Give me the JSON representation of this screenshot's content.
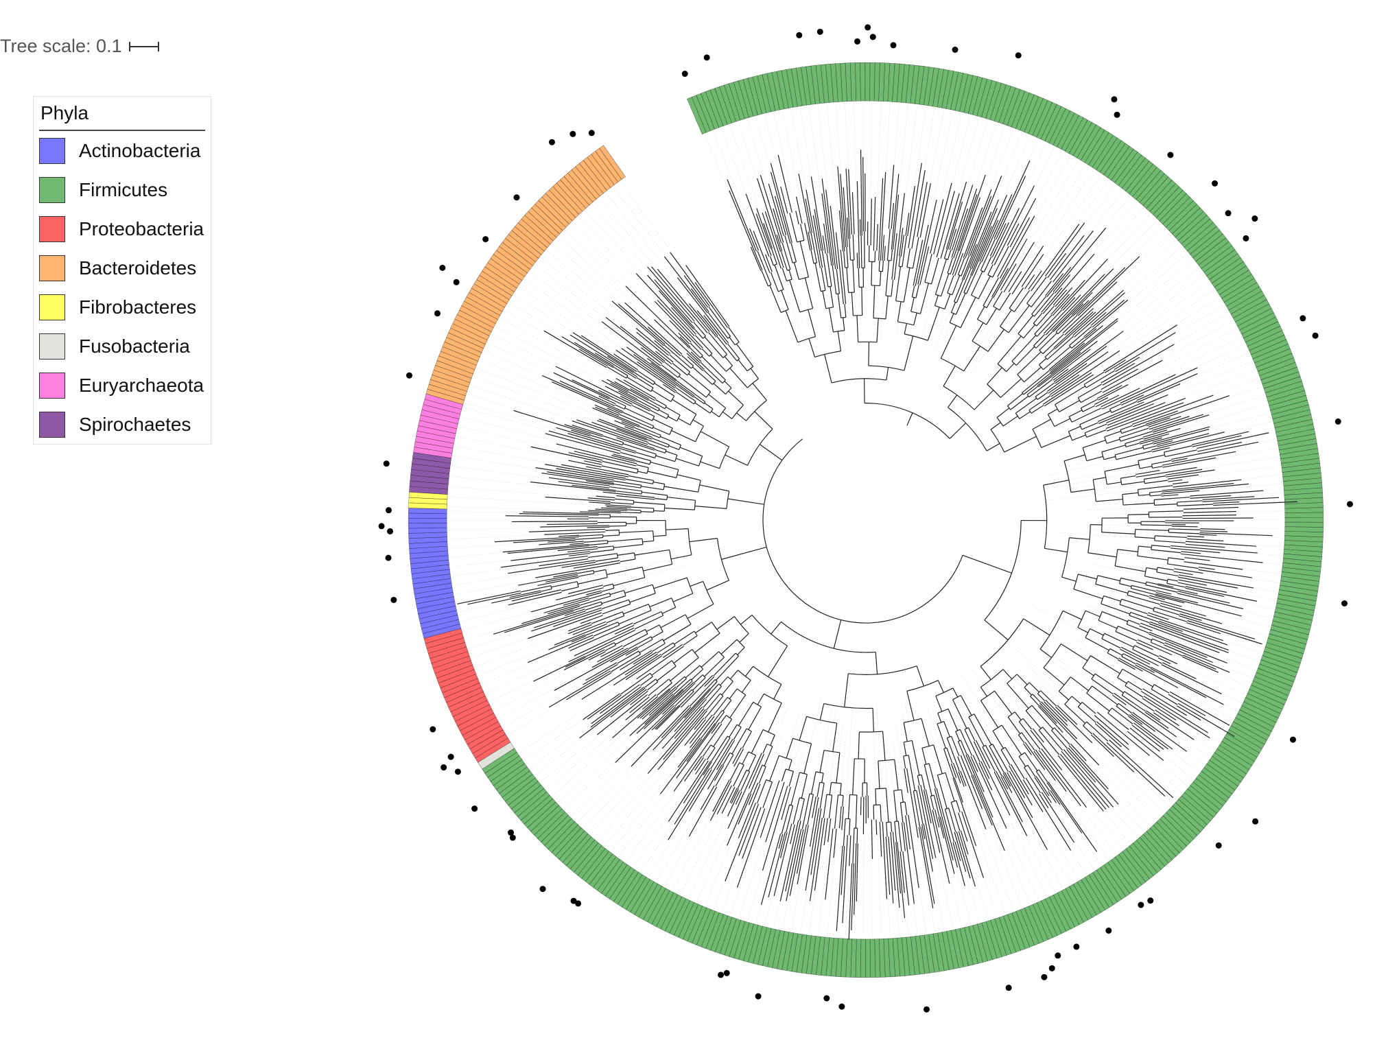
{
  "scale": {
    "label": "Tree scale: 0.1"
  },
  "legend": {
    "title": "Phyla",
    "items": [
      {
        "label": "Actinobacteria",
        "color": "#7777ff"
      },
      {
        "label": "Firmicutes",
        "color": "#6fba70"
      },
      {
        "label": "Proteobacteria",
        "color": "#ff6464"
      },
      {
        "label": "Bacteroidetes",
        "color": "#ffb470"
      },
      {
        "label": "Fibrobacteres",
        "color": "#ffff64"
      },
      {
        "label": "Fusobacteria",
        "color": "#e2e2dc"
      },
      {
        "label": "Euryarchaeota",
        "color": "#ff80e0"
      },
      {
        "label": "Spirochaetes",
        "color": "#8e5aa8"
      }
    ]
  },
  "tree": {
    "ring_segments": [
      {
        "phylum": "Bacteroidetes",
        "from_deg": 196,
        "to_deg": 235,
        "leaves": 62
      },
      {
        "phylum": "Euryarchaeota",
        "from_deg": 188.5,
        "to_deg": 196,
        "leaves": 11
      },
      {
        "phylum": "Spirochaetes",
        "from_deg": 183.5,
        "to_deg": 188.5,
        "leaves": 7
      },
      {
        "phylum": "Fibrobacteres",
        "from_deg": 181.5,
        "to_deg": 183.5,
        "leaves": 3
      },
      {
        "phylum": "Actinobacteria",
        "from_deg": 165,
        "to_deg": 181.5,
        "leaves": 26
      },
      {
        "phylum": "Proteobacteria",
        "from_deg": 148,
        "to_deg": 165,
        "leaves": 26
      },
      {
        "phylum": "Fusobacteria",
        "from_deg": 147,
        "to_deg": 148,
        "leaves": 1
      },
      {
        "phylum": "Firmicutes",
        "from_deg": -113,
        "to_deg": 147,
        "leaves": 420
      }
    ]
  }
}
